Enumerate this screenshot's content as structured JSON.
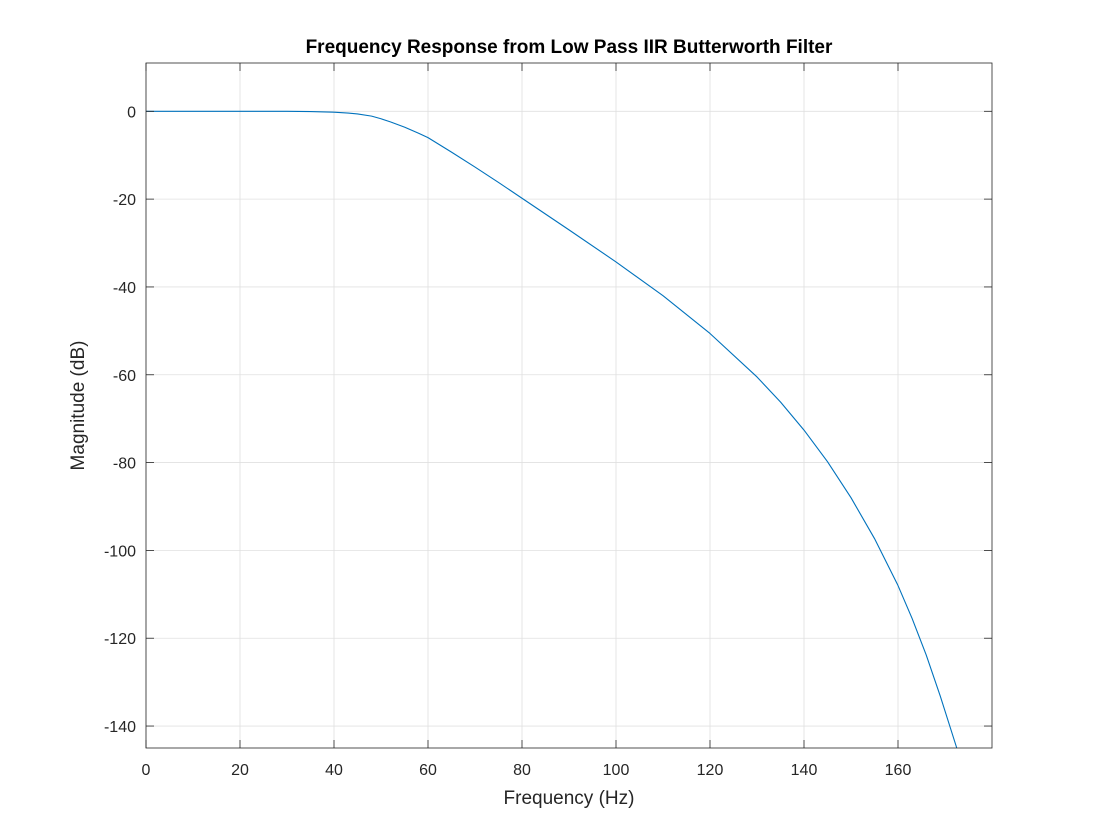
{
  "chart_data": {
    "type": "line",
    "title": "Frequency Response from Low Pass IIR Butterworth Filter",
    "xlabel": "Frequency (Hz)",
    "ylabel": "Magnitude (dB)",
    "xlim": [
      0,
      180
    ],
    "ylim": [
      -145,
      11
    ],
    "xticks": [
      0,
      20,
      40,
      60,
      80,
      100,
      120,
      140,
      160
    ],
    "yticks": [
      0,
      -20,
      -40,
      -60,
      -80,
      -100,
      -120,
      -140
    ],
    "grid": true,
    "legend": "none",
    "colors": {
      "line": "#0072BD",
      "grid": "#e0e0e0",
      "axes": "#262626",
      "background": "#ffffff"
    },
    "series": [
      {
        "x": [
          0,
          10,
          20,
          30,
          35,
          40,
          43,
          45,
          48,
          50,
          52,
          55,
          58,
          60,
          65,
          70,
          75,
          80,
          90,
          100,
          110,
          120,
          130,
          135,
          140,
          145,
          150,
          155,
          160,
          163,
          166,
          169,
          172.5
        ],
        "y": [
          0,
          0,
          0,
          0,
          -0.05,
          -0.2,
          -0.4,
          -0.6,
          -1.1,
          -1.7,
          -2.4,
          -3.6,
          -5.0,
          -6.0,
          -9.3,
          -12.7,
          -16.2,
          -19.8,
          -27.0,
          -34.3,
          -42.0,
          -50.6,
          -60.5,
          -66.2,
          -72.6,
          -79.8,
          -88.0,
          -97.3,
          -108.0,
          -115.5,
          -123.8,
          -133.2,
          -145
        ]
      }
    ]
  }
}
